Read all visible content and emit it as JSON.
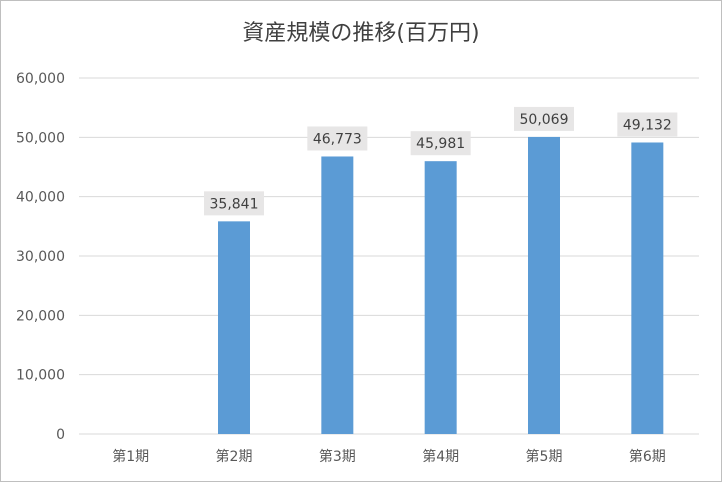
{
  "chart_data": {
    "type": "bar",
    "title": "資産規模の推移(百万円)",
    "categories": [
      "第1期",
      "第2期",
      "第3期",
      "第4期",
      "第5期",
      "第6期"
    ],
    "values": [
      null,
      35841,
      46773,
      45981,
      50069,
      49132
    ],
    "data_labels": [
      "",
      "35,841",
      "46,773",
      "45,981",
      "50,069",
      "49,132"
    ],
    "ylim": [
      0,
      60000
    ],
    "yticks": [
      0,
      10000,
      20000,
      30000,
      40000,
      50000,
      60000
    ],
    "ytick_labels": [
      "0",
      "10,000",
      "20,000",
      "30,000",
      "40,000",
      "50,000",
      "60,000"
    ],
    "grid": true,
    "legend": "none",
    "bar_color": "#5b9bd5",
    "label_bg_color": "#e7e6e6"
  }
}
